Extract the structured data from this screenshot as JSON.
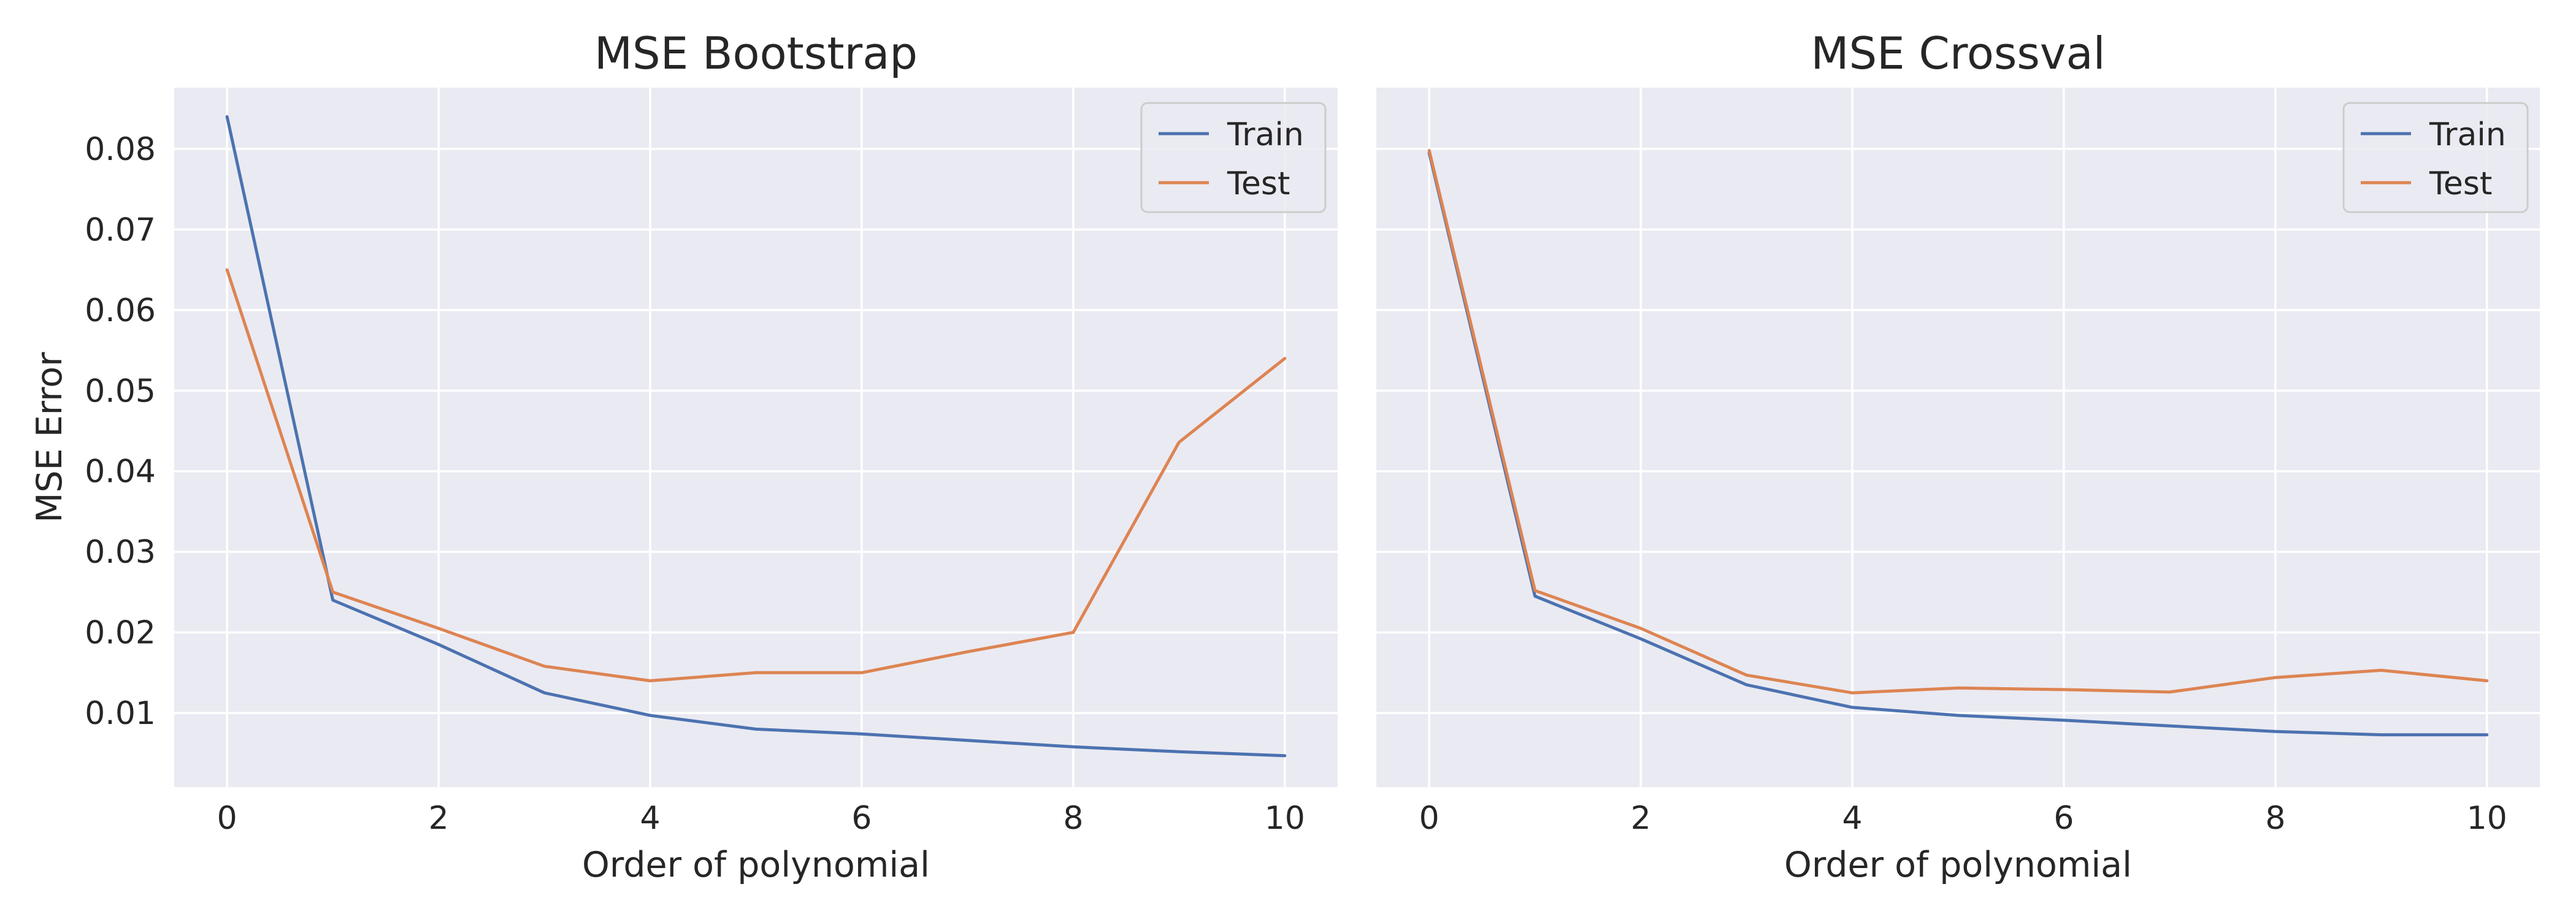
{
  "colors": {
    "axes_bg": "#EAEAF2",
    "grid": "#FFFFFF",
    "train": "#4C72B0",
    "test": "#DD8452",
    "text": "#262626"
  },
  "chart_data": [
    {
      "type": "line",
      "title": "MSE Bootstrap",
      "xlabel": "Order of polynomial",
      "ylabel": "MSE Error",
      "x": [
        0,
        1,
        2,
        3,
        4,
        5,
        6,
        7,
        8,
        9,
        10
      ],
      "xlim": [
        -0.5,
        10.5
      ],
      "ylim": [
        0.0008,
        0.0876
      ],
      "xticks": [
        0,
        2,
        4,
        6,
        8,
        10
      ],
      "xtick_labels": [
        "0",
        "2",
        "4",
        "6",
        "8",
        "10"
      ],
      "yticks": [
        0.01,
        0.02,
        0.03,
        0.04,
        0.05,
        0.06,
        0.07,
        0.08
      ],
      "ytick_labels": [
        "0.01",
        "0.02",
        "0.03",
        "0.04",
        "0.05",
        "0.06",
        "0.07",
        "0.08"
      ],
      "grid": true,
      "legend_position": "top-right",
      "series": [
        {
          "name": "Train",
          "color": "#4C72B0",
          "values": [
            0.084,
            0.024,
            0.0185,
            0.0125,
            0.0097,
            0.008,
            0.0074,
            0.0066,
            0.0058,
            0.0052,
            0.0047
          ]
        },
        {
          "name": "Test",
          "color": "#DD8452",
          "values": [
            0.065,
            0.025,
            0.0205,
            0.0158,
            0.014,
            0.015,
            0.015,
            0.0176,
            0.02,
            0.0436,
            0.054
          ]
        }
      ]
    },
    {
      "type": "line",
      "title": "MSE Crossval",
      "xlabel": "Order of polynomial",
      "ylabel": "",
      "x": [
        0,
        1,
        2,
        3,
        4,
        5,
        6,
        7,
        8,
        9,
        10
      ],
      "xlim": [
        -0.5,
        10.5
      ],
      "ylim": [
        0.0008,
        0.0876
      ],
      "xticks": [
        0,
        2,
        4,
        6,
        8,
        10
      ],
      "xtick_labels": [
        "0",
        "2",
        "4",
        "6",
        "8",
        "10"
      ],
      "yticks": [
        0.01,
        0.02,
        0.03,
        0.04,
        0.05,
        0.06,
        0.07,
        0.08
      ],
      "ytick_labels": [],
      "grid": true,
      "legend_position": "top-right",
      "series": [
        {
          "name": "Train",
          "color": "#4C72B0",
          "values": [
            0.0795,
            0.0245,
            0.0192,
            0.0135,
            0.0107,
            0.0097,
            0.0091,
            0.0084,
            0.0077,
            0.0073,
            0.0073
          ]
        },
        {
          "name": "Test",
          "color": "#DD8452",
          "values": [
            0.0798,
            0.0252,
            0.0205,
            0.0147,
            0.0125,
            0.0131,
            0.0129,
            0.0126,
            0.0144,
            0.0153,
            0.014
          ]
        }
      ]
    }
  ]
}
